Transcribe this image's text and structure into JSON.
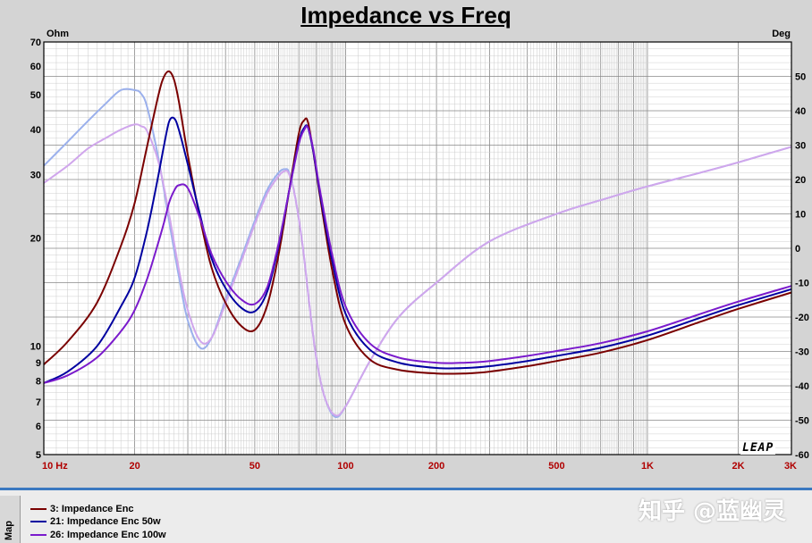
{
  "chart_data": {
    "type": "line",
    "title": "Impedance vs Freq",
    "y_left_label": "Ohm",
    "y_right_label": "Deg",
    "x_scale": "log",
    "x_range": [
      10,
      3000
    ],
    "x_ticks": [
      {
        "value": 10,
        "label": "10  Hz"
      },
      {
        "value": 20,
        "label": "20"
      },
      {
        "value": 50,
        "label": "50"
      },
      {
        "value": 100,
        "label": "100"
      },
      {
        "value": 200,
        "label": "200"
      },
      {
        "value": 500,
        "label": "500"
      },
      {
        "value": 1000,
        "label": "1K"
      },
      {
        "value": 2000,
        "label": "2K"
      },
      {
        "value": 3000,
        "label": "3K"
      }
    ],
    "y_left_scale": "log",
    "y_left_range": [
      5,
      70
    ],
    "y_left_ticks": [
      5,
      6,
      7,
      8,
      9,
      10,
      20,
      30,
      40,
      50,
      60,
      70
    ],
    "y_right_range": [
      -60,
      60
    ],
    "y_right_ticks": [
      -60,
      -50,
      -40,
      -30,
      -20,
      -10,
      0,
      10,
      20,
      30,
      40,
      50
    ],
    "grid": true,
    "logo_text": "LEAP",
    "series": [
      {
        "name": "3: Impedance Enc",
        "axis": "left",
        "color": "#7a0000",
        "x": [
          10,
          12,
          15,
          18,
          20,
          22,
          24,
          25,
          26,
          27,
          28,
          30,
          33,
          36,
          40,
          45,
          50,
          55,
          60,
          65,
          70,
          73,
          75,
          78,
          82,
          90,
          100,
          120,
          150,
          200,
          250,
          300,
          400,
          500,
          700,
          1000,
          1500,
          2000,
          3000
        ],
        "values": [
          8.9,
          10.3,
          13.2,
          19,
          25,
          36,
          50,
          56,
          58,
          55,
          48,
          34,
          22.5,
          16.5,
          13.2,
          11.4,
          11.1,
          13,
          18,
          27,
          39,
          42.5,
          42,
          35,
          26.5,
          16.5,
          11.5,
          9.2,
          8.6,
          8.4,
          8.4,
          8.5,
          8.8,
          9.1,
          9.6,
          10.4,
          11.7,
          12.7,
          14.1
        ]
      },
      {
        "name": "21: Impedance Enc  50w",
        "axis": "left",
        "color": "#0000a0",
        "x": [
          10,
          12,
          15,
          18,
          20,
          22,
          24,
          25,
          26,
          27,
          28,
          30,
          33,
          36,
          40,
          45,
          50,
          55,
          60,
          65,
          70,
          73,
          75,
          78,
          82,
          90,
          100,
          120,
          150,
          200,
          250,
          300,
          400,
          500,
          700,
          1000,
          1500,
          2000,
          3000
        ],
        "values": [
          7.9,
          8.5,
          10,
          12.9,
          15.5,
          21,
          30,
          36,
          42,
          43,
          40,
          32,
          23,
          17.5,
          14.5,
          12.8,
          12.5,
          14.2,
          19,
          27,
          37,
          40.5,
          40.5,
          35,
          27,
          17.5,
          12.3,
          9.8,
          9,
          8.7,
          8.7,
          8.8,
          9.1,
          9.4,
          9.9,
          10.7,
          12,
          13,
          14.4
        ]
      },
      {
        "name": "26: Impedance Enc   100w",
        "axis": "left",
        "color": "#7a1acc",
        "x": [
          10,
          12,
          15,
          18,
          20,
          22,
          24,
          25,
          26,
          27,
          28,
          30,
          33,
          36,
          40,
          45,
          50,
          55,
          60,
          65,
          70,
          73,
          75,
          78,
          82,
          90,
          100,
          120,
          150,
          200,
          250,
          300,
          400,
          500,
          700,
          1000,
          1500,
          2000,
          3000
        ],
        "values": [
          7.9,
          8.3,
          9.3,
          11,
          12.6,
          15.4,
          19.5,
          22,
          25,
          27,
          28,
          27.5,
          22.5,
          18,
          15.2,
          13.5,
          13.1,
          14.6,
          19.3,
          27,
          36.5,
          40,
          40.5,
          35.5,
          27.5,
          18.2,
          12.9,
          10.2,
          9.3,
          9,
          9,
          9.1,
          9.4,
          9.7,
          10.2,
          11,
          12.3,
          13.3,
          14.7
        ]
      },
      {
        "name": "",
        "axis": "right",
        "color": "#9bb0ec",
        "x": [
          10,
          12,
          14,
          16,
          18,
          20,
          21,
          22,
          24,
          26,
          28,
          30,
          33,
          36,
          40,
          45,
          50,
          55,
          60,
          63,
          65,
          68,
          72,
          76,
          80,
          85,
          92,
          100,
          120,
          150,
          200,
          300,
          500,
          700,
          1000,
          1500,
          2000,
          3000
        ],
        "values": [
          24,
          31,
          37,
          42,
          46,
          46,
          45,
          41,
          26,
          8,
          -8,
          -21,
          -29,
          -26,
          -15,
          -3,
          8,
          17,
          22,
          23,
          22,
          15,
          1,
          -17,
          -32,
          -43,
          -49,
          -46,
          -33,
          -20,
          -10,
          2,
          10,
          14,
          18,
          22,
          25,
          29.5
        ]
      },
      {
        "name": "",
        "axis": "right",
        "color": "#d0a6ec",
        "x": [
          10,
          12,
          14,
          16,
          18,
          20,
          21,
          22,
          24,
          26,
          28,
          30,
          33,
          36,
          40,
          45,
          50,
          55,
          60,
          63,
          65,
          68,
          72,
          76,
          80,
          85,
          92,
          100,
          120,
          150,
          200,
          300,
          500,
          700,
          1000,
          1500,
          2000,
          3000
        ],
        "values": [
          19,
          24,
          29,
          32,
          34.5,
          36,
          35.5,
          34,
          25,
          10,
          -6,
          -18,
          -27,
          -26,
          -16,
          -4,
          7,
          16,
          21,
          22.5,
          21.5,
          15,
          1,
          -17,
          -32,
          -43,
          -48.5,
          -46,
          -33,
          -20,
          -10,
          2,
          10,
          14,
          18,
          22,
          25,
          29.5
        ]
      }
    ]
  },
  "legend": {
    "map_tab": "Map",
    "items": [
      {
        "label": "3: Impedance Enc",
        "color": "#7a0000"
      },
      {
        "label": "21: Impedance Enc  50w",
        "color": "#0000a0"
      },
      {
        "label": "26: Impedance Enc   100w",
        "color": "#7a1acc"
      }
    ]
  },
  "watermark": "知乎 @蓝幽灵"
}
